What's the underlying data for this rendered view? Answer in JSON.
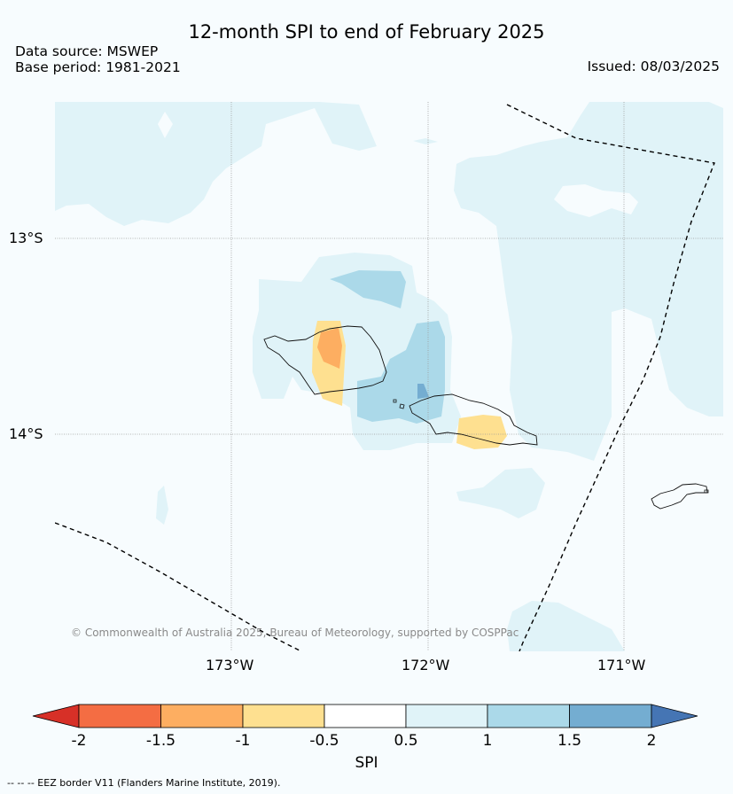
{
  "title": "12-month SPI to end of February 2025",
  "data_source": "Data source: MSWEP",
  "base_period": "Base period: 1981-2021",
  "issued": "Issued: 08/03/2025",
  "lat_labels": [
    "13°S",
    "14°S"
  ],
  "lon_labels": [
    "173°W",
    "172°W",
    "171°W"
  ],
  "copyright": "© Commonwealth of Australia 2025, Bureau of Meteorology, supported by COSPPac",
  "colorbar": {
    "ticks": [
      "-2",
      "-1.5",
      "-1",
      "-0.5",
      "0.5",
      "1",
      "1.5",
      "2"
    ],
    "label": "SPI",
    "colors": {
      "below_min": "#d73027",
      "m2_m15": "#f46d43",
      "m15_m1": "#fdae61",
      "m1_m05": "#fee090",
      "m05_05": "#ffffff",
      "p05_1": "#e0f3f8",
      "p1_15": "#abd9e9",
      "p15_2": "#74add1",
      "above_max": "#4575b4"
    }
  },
  "footnote": "--  --  -- EEZ border V11 (Flanders Marine Institute, 2019)."
}
